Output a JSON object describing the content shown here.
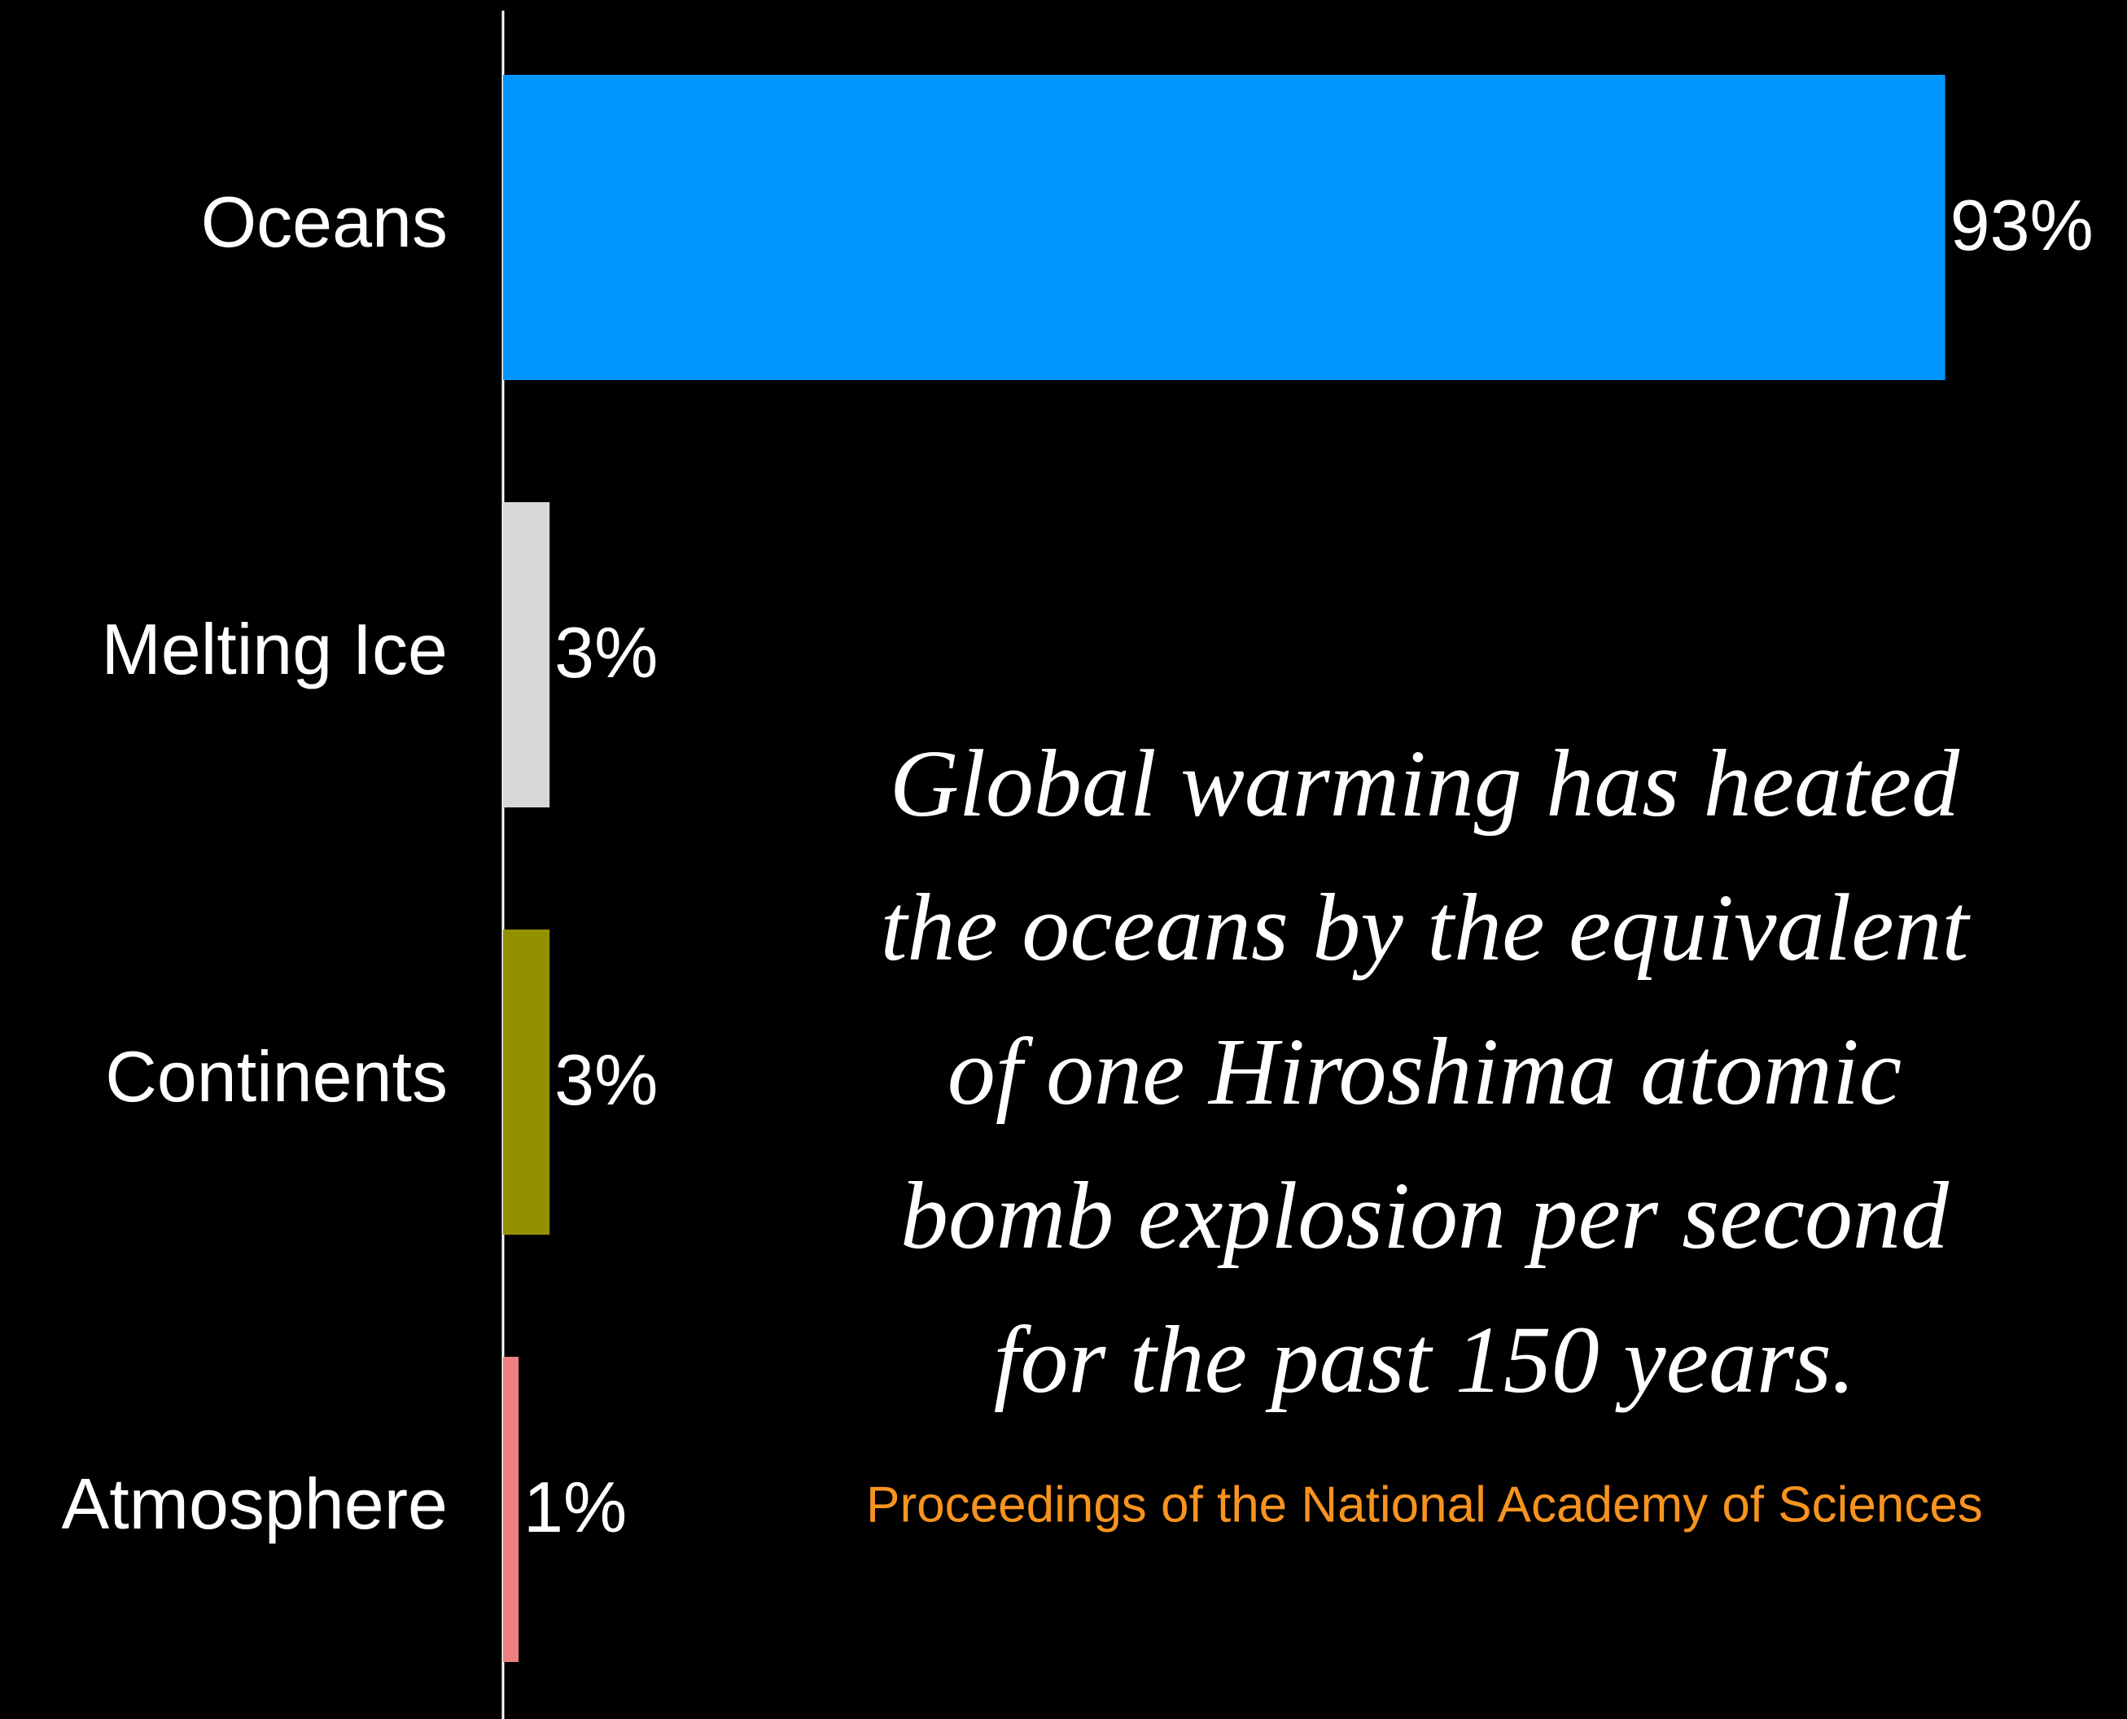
{
  "chart_data": {
    "type": "bar",
    "orientation": "horizontal",
    "categories": [
      "Oceans",
      "Melting Ice",
      "Continents",
      "Atmosphere"
    ],
    "values": [
      93,
      3,
      3,
      1
    ],
    "value_labels": [
      "93%",
      "3%",
      "3%",
      "1%"
    ],
    "colors": [
      "#0096ff",
      "#d8d8d8",
      "#949100",
      "#f08080"
    ],
    "xlim": [
      0,
      100
    ],
    "annotation": [
      "Global warming has heated",
      "the oceans by the equivalent",
      "of one Hiroshima atomic",
      "bomb explosion per second",
      "for the past 150 years."
    ],
    "source": "Proceedings of the National Academy of Sciences"
  }
}
